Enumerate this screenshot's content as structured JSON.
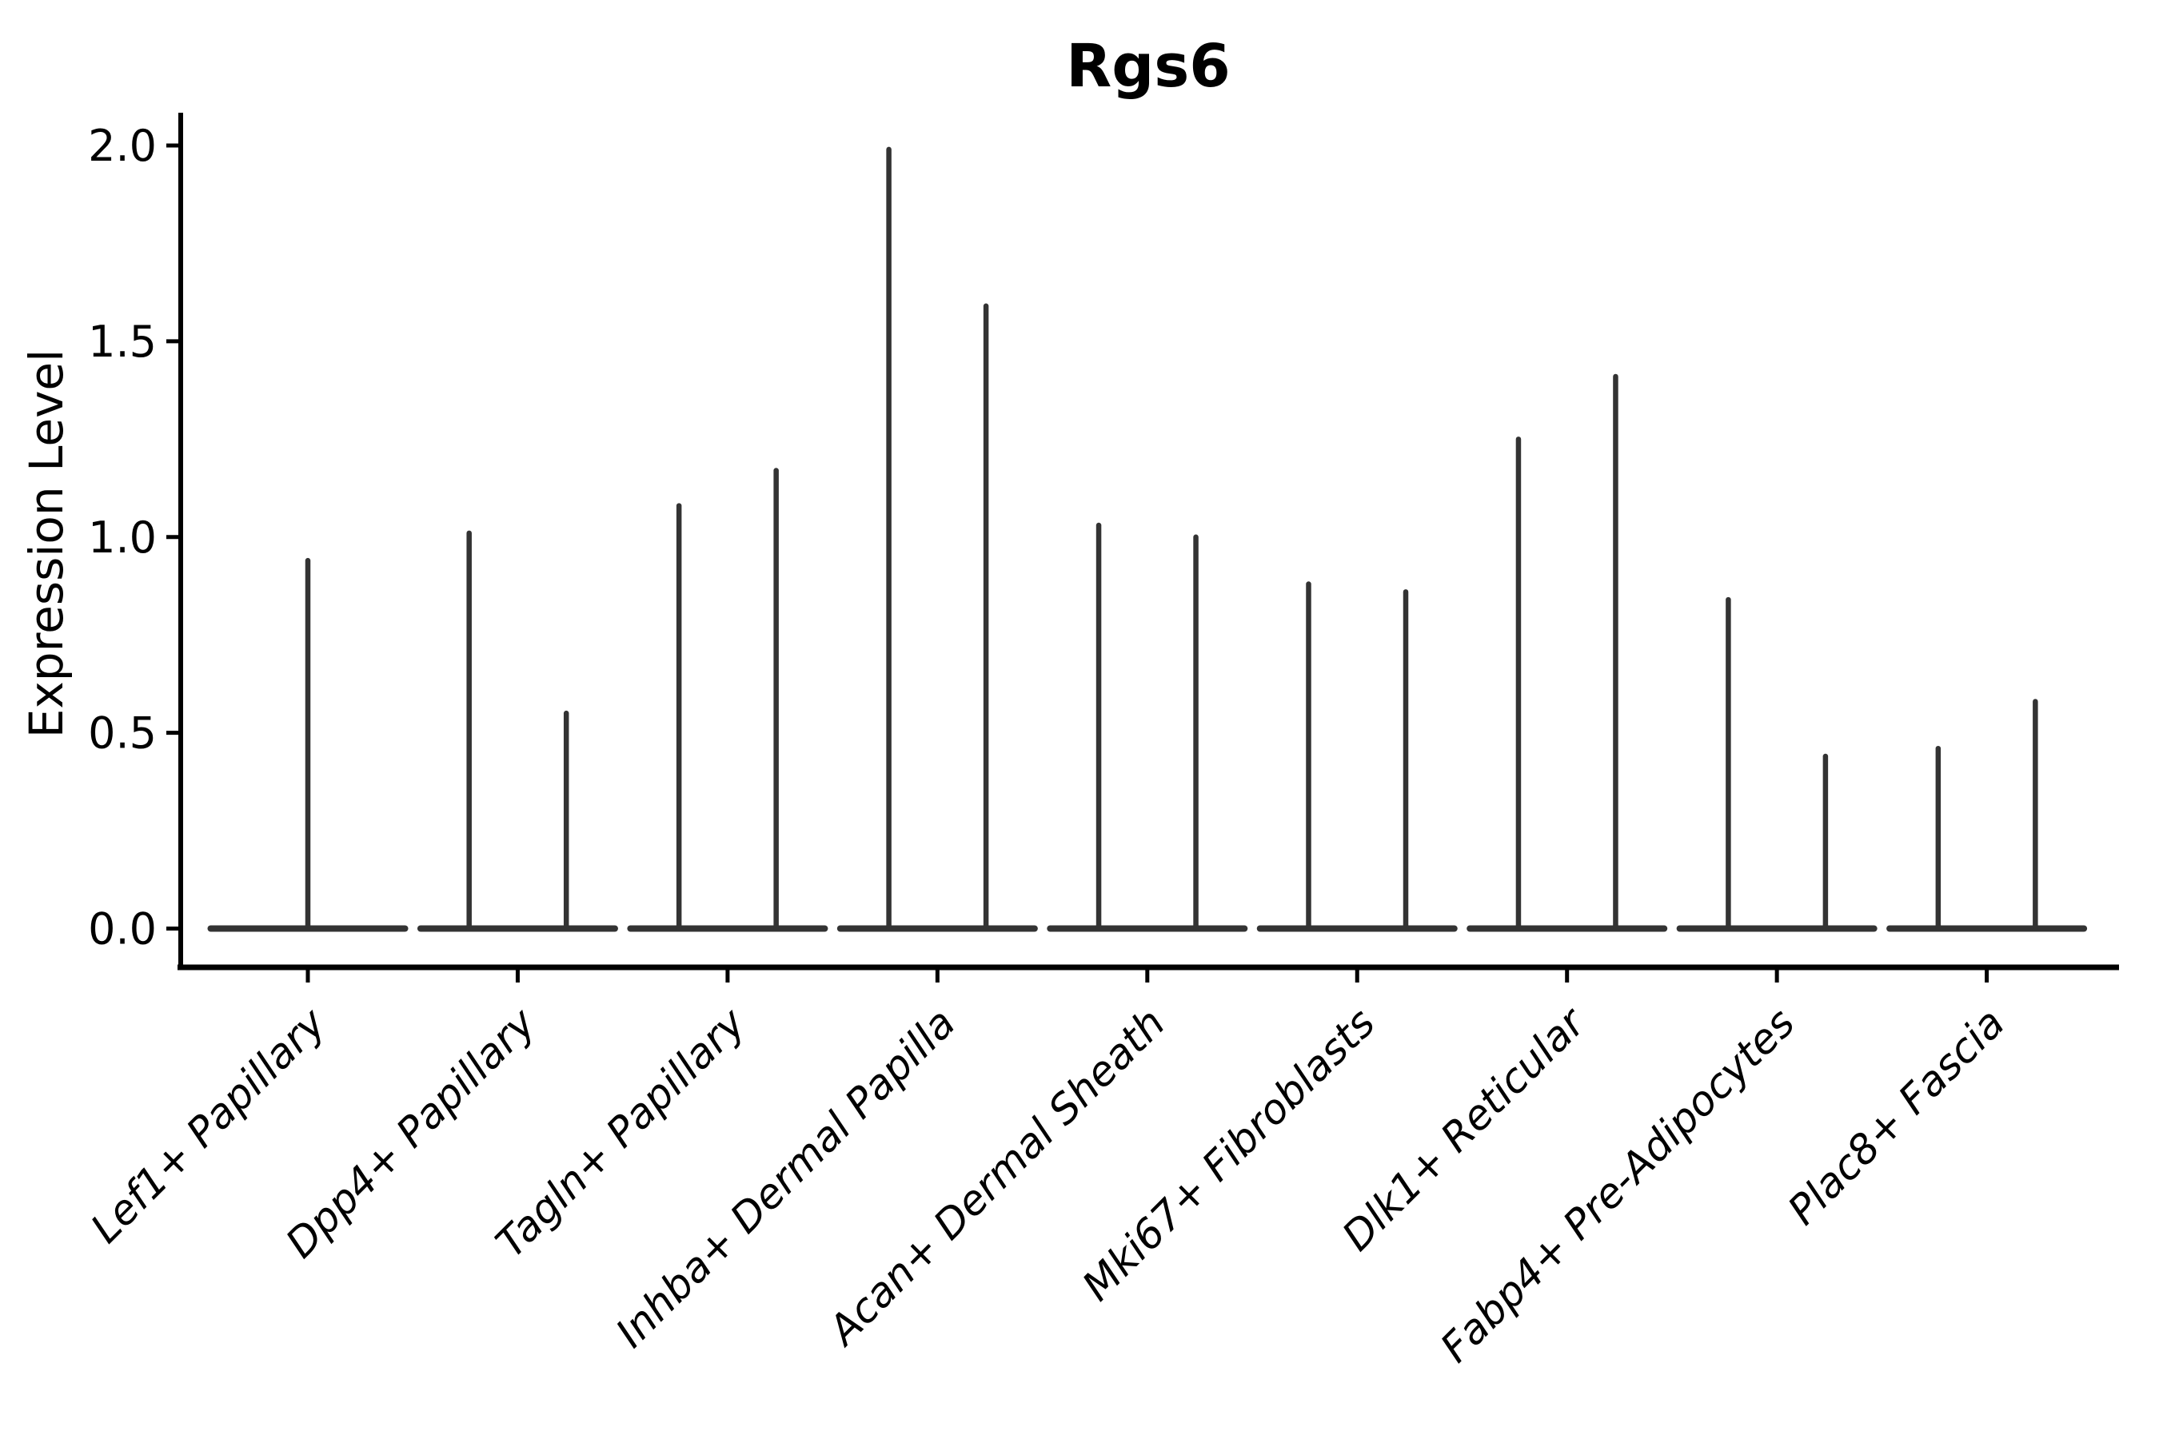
{
  "figure": {
    "background": "#ffffff"
  },
  "chart_data": {
    "type": "violin",
    "title": "Rgs6",
    "xlabel": "",
    "ylabel": "Expression Level",
    "ylim": [
      0.0,
      2.0
    ],
    "yticks": [
      "0.0",
      "0.5",
      "1.0",
      "1.5",
      "2.0"
    ],
    "ytick_values": [
      0.0,
      0.5,
      1.0,
      1.5,
      2.0
    ],
    "grid": false,
    "legend_position": "none",
    "categories": [
      "Lef1+ Papillary",
      "Dpp4+ Papillary",
      "Tagln+ Papillary",
      "Inhba+ Dermal Papilla",
      "Acan+ Dermal Sheath",
      "Mki67+ Fibroblasts",
      "Dlk1+ Reticular",
      "Fabp4+ Pre-Adipocytes",
      "Plac8+ Fascia"
    ],
    "groups": [
      {
        "label": "Lef1+ Papillary",
        "violin_max_expression": [
          0.94
        ]
      },
      {
        "label": "Dpp4+ Papillary",
        "violin_max_expression": [
          1.01,
          0.55
        ]
      },
      {
        "label": "Tagln+ Papillary",
        "violin_max_expression": [
          1.08,
          1.17
        ]
      },
      {
        "label": "Inhba+ Dermal Papilla",
        "violin_max_expression": [
          1.99,
          1.59
        ]
      },
      {
        "label": "Acan+ Dermal Sheath",
        "violin_max_expression": [
          1.03,
          1.0
        ]
      },
      {
        "label": "Mki67+ Fibroblasts",
        "violin_max_expression": [
          0.88,
          0.86
        ]
      },
      {
        "label": "Dlk1+ Reticular",
        "violin_max_expression": [
          1.25,
          1.41
        ]
      },
      {
        "label": "Fabp4+ Pre-Adipocytes",
        "violin_max_expression": [
          0.84,
          0.44
        ]
      },
      {
        "label": "Plac8+ Fascia",
        "violin_max_expression": [
          0.46,
          0.58
        ]
      }
    ],
    "violin_shape_note": "each violin collapses to a flat base at 0 with a thin central density spike up to its max expression"
  },
  "style": {
    "violin_color": "#333333",
    "axis_color": "#000000",
    "text_color": "#000000",
    "background": "#ffffff"
  }
}
